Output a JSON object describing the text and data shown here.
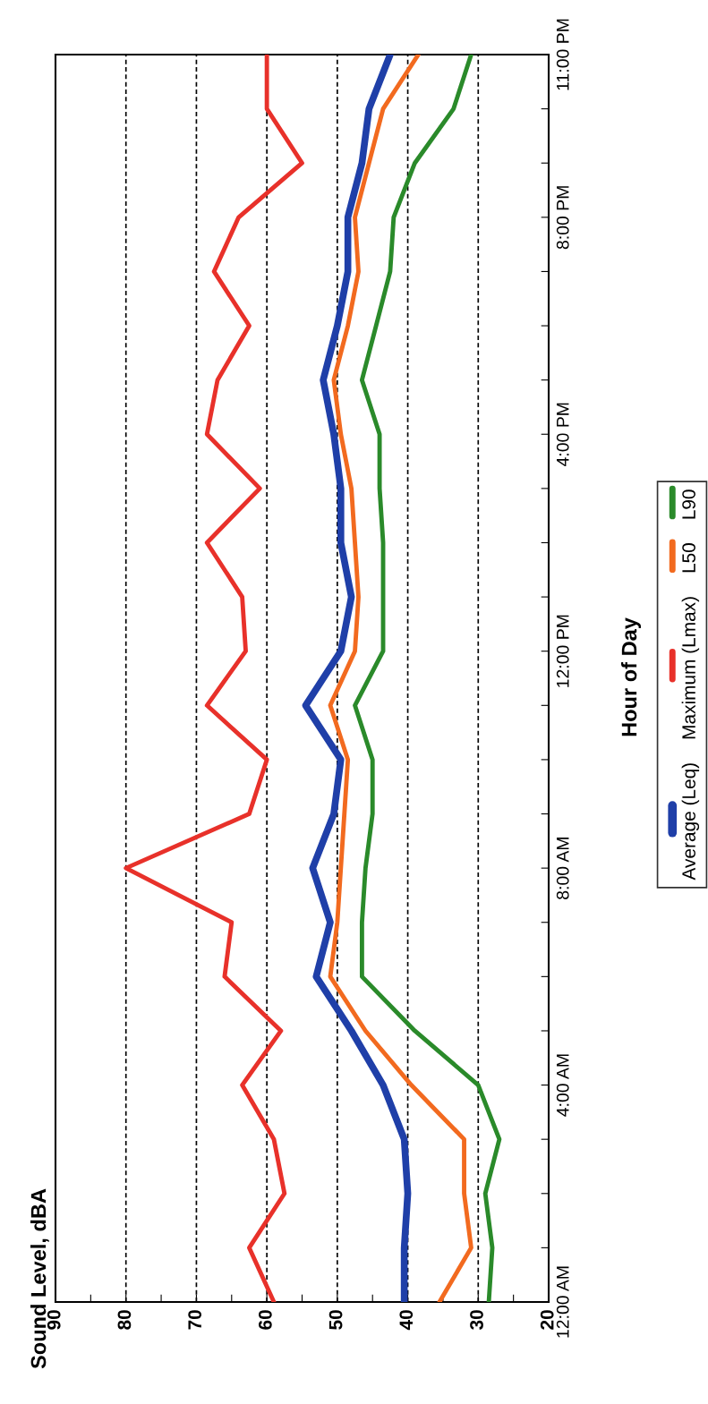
{
  "chart_data": {
    "type": "line",
    "title": "Sound Level, dBA",
    "ylabel": "Hour of Day",
    "x": [
      0,
      1,
      2,
      3,
      4,
      5,
      6,
      7,
      8,
      9,
      10,
      11,
      12,
      13,
      14,
      15,
      16,
      17,
      18,
      19,
      20,
      21,
      22,
      23
    ],
    "series": [
      {
        "name": "Average (Leq)",
        "color": "#1f3fa8",
        "values": [
          40.5,
          40.5,
          40,
          40.5,
          43.5,
          48,
          53,
          51,
          53.5,
          50.5,
          49.5,
          54.5,
          49.5,
          48,
          49.5,
          49.5,
          50.5,
          52,
          50,
          48.5,
          48.5,
          46.5,
          45.5,
          42.5
        ]
      },
      {
        "name": "Maximum (Lmax)",
        "color": "#e8312a",
        "values": [
          59,
          62.5,
          57.5,
          59,
          63.5,
          58,
          66,
          65,
          80,
          62.5,
          60,
          68.5,
          63,
          63.5,
          68.5,
          61,
          68.5,
          67,
          62.5,
          67.5,
          64,
          55,
          60,
          60
        ]
      },
      {
        "name": "L50",
        "color": "#f26a1f",
        "values": [
          35.5,
          31,
          32,
          32,
          39.5,
          46,
          51,
          50,
          49.5,
          49,
          48.5,
          51,
          47.5,
          47,
          47.5,
          48,
          49.5,
          50.5,
          48.5,
          47,
          47.5,
          45.5,
          43.5,
          38.5
        ]
      },
      {
        "name": "L90",
        "color": "#2a8a2a",
        "values": [
          28.5,
          28,
          29,
          27,
          30,
          39,
          46.5,
          46.5,
          46,
          45,
          45,
          47.5,
          43.5,
          43.5,
          43.5,
          44,
          44,
          46.5,
          44.5,
          42.5,
          42,
          39,
          33.5,
          31
        ]
      }
    ],
    "orientation": "horizontal",
    "ylim": [
      0,
      23
    ],
    "yticks": [
      {
        "value": 0,
        "label": "12:00 AM"
      },
      {
        "value": 1,
        "label": null
      },
      {
        "value": 2,
        "label": null
      },
      {
        "value": 3,
        "label": null
      },
      {
        "value": 4,
        "label": "4:00 AM"
      },
      {
        "value": 5,
        "label": null
      },
      {
        "value": 6,
        "label": null
      },
      {
        "value": 7,
        "label": null
      },
      {
        "value": 8,
        "label": "8:00 AM"
      },
      {
        "value": 9,
        "label": null
      },
      {
        "value": 10,
        "label": null
      },
      {
        "value": 11,
        "label": null
      },
      {
        "value": 12,
        "label": "12:00 PM"
      },
      {
        "value": 13,
        "label": null
      },
      {
        "value": 14,
        "label": null
      },
      {
        "value": 15,
        "label": null
      },
      {
        "value": 16,
        "label": "4:00 PM"
      },
      {
        "value": 17,
        "label": null
      },
      {
        "value": 18,
        "label": null
      },
      {
        "value": 19,
        "label": null
      },
      {
        "value": 20,
        "label": "8:00 PM"
      },
      {
        "value": 21,
        "label": null
      },
      {
        "value": 22,
        "label": null
      },
      {
        "value": 23,
        "label": "11:00 PM"
      }
    ],
    "xlim": [
      90,
      20
    ],
    "xticks": [
      20,
      {
        "value": 25,
        "label": null
      },
      30,
      {
        "value": 35,
        "label": null
      },
      40,
      {
        "value": 45,
        "label": null
      },
      50,
      {
        "value": 55,
        "label": null
      },
      60,
      {
        "value": 65,
        "label": null
      },
      70,
      {
        "value": 75,
        "label": null
      },
      80,
      {
        "value": 85,
        "label": null
      },
      90
    ],
    "grid": "x",
    "legend": "right",
    "marker": "none",
    "line_style": "solid"
  }
}
